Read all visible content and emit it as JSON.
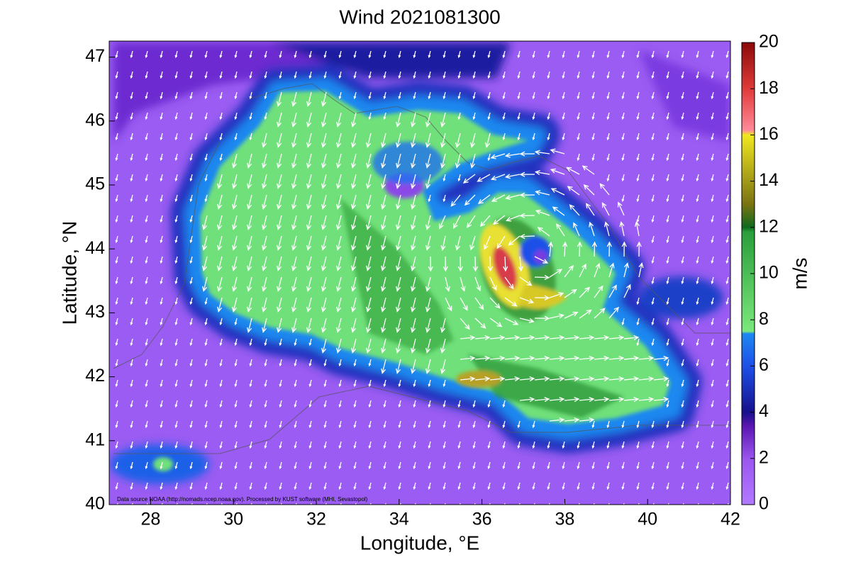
{
  "chart_data": {
    "type": "contour-map",
    "title": "Wind 2021081300",
    "xlabel": "Longitude, °E",
    "ylabel": "Latitude, °N",
    "xlim": [
      27,
      42
    ],
    "xticks": [
      28,
      30,
      32,
      34,
      36,
      38,
      40,
      42
    ],
    "ylim": [
      40,
      47.25
    ],
    "yticks": [
      40,
      41,
      42,
      43,
      44,
      45,
      46,
      47
    ],
    "colorbar_label": "m/s",
    "clim": [
      0,
      20
    ],
    "cticks": [
      0,
      2,
      4,
      6,
      8,
      10,
      12,
      14,
      16,
      18,
      20
    ],
    "note": "Data source NOAA (http://nomads.ncep.noaa.gov). Processed by KUST software (MHI, Sevastopol)"
  }
}
